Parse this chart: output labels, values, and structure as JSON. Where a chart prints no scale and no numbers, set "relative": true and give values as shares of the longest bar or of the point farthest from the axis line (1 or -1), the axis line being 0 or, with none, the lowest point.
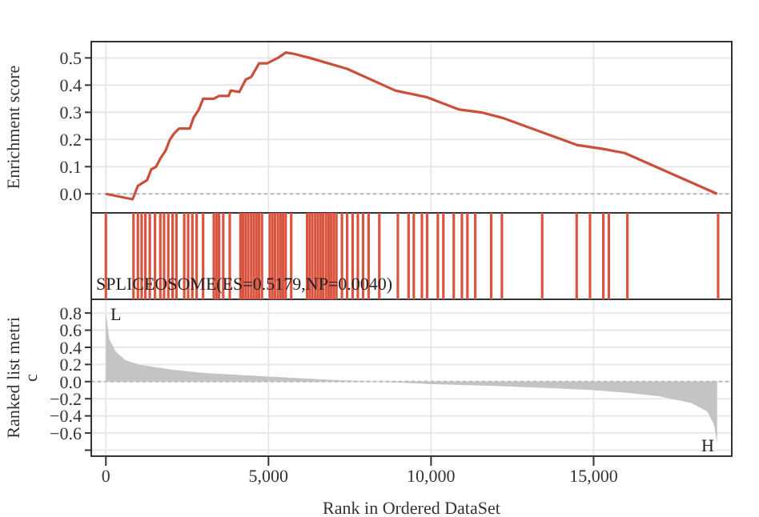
{
  "chart_data": [
    {
      "type": "line",
      "ylabel": "Enrichment score",
      "x": [
        0,
        820,
        985,
        1265,
        1395,
        1545,
        1675,
        1840,
        1970,
        2085,
        2250,
        2580,
        2695,
        2860,
        2990,
        3315,
        3480,
        3775,
        3840,
        4105,
        4300,
        4470,
        4710,
        4960,
        5290,
        5535,
        5780,
        6270,
        7420,
        8900,
        9890,
        10870,
        11530,
        12180,
        13330,
        14480,
        15300,
        15960,
        18800
      ],
      "series": [
        {
          "color": "#c9503c",
          "values": [
            0,
            -0.02,
            0.03,
            0.05,
            0.09,
            0.1,
            0.13,
            0.16,
            0.2,
            0.22,
            0.24,
            0.24,
            0.28,
            0.31,
            0.35,
            0.35,
            0.36,
            0.36,
            0.38,
            0.375,
            0.42,
            0.43,
            0.48,
            0.48,
            0.5,
            0.52,
            0.515,
            0.5,
            0.46,
            0.38,
            0.355,
            0.31,
            0.3,
            0.28,
            0.23,
            0.18,
            0.165,
            0.15,
            0
          ]
        }
      ],
      "xlim": [
        -450,
        19250
      ],
      "xticks": [
        0,
        5000,
        10000,
        15000
      ],
      "ylim": [
        -0.07,
        0.56
      ],
      "yticks": [
        {
          "value": 0,
          "label": "0.0"
        },
        {
          "value": 0.1,
          "label": "0.1"
        },
        {
          "value": 0.2,
          "label": "0.2"
        },
        {
          "value": 0.3,
          "label": "0.3"
        },
        {
          "value": 0.4,
          "label": "0.4"
        },
        {
          "value": 0.5,
          "label": "0.5"
        }
      ],
      "ref_lines": [
        {
          "axis": "y",
          "value": 0,
          "line_style": "dotted",
          "color": "#bbbbbb"
        }
      ],
      "grid": true,
      "tick_labels": "y",
      "marker": "none",
      "line_style": "solid"
    },
    {
      "type": "bar",
      "relative": true,
      "x": [
        0,
        850,
        985,
        1100,
        1215,
        1350,
        1510,
        1675,
        1790,
        1920,
        2050,
        2170,
        2410,
        2530,
        2660,
        2790,
        2990,
        3320,
        3400,
        3480,
        3610,
        3810,
        4140,
        4220,
        4300,
        4380,
        4470,
        4550,
        4630,
        4710,
        4800,
        5040,
        5120,
        5200,
        5290,
        5370,
        5450,
        5530,
        5700,
        6190,
        6270,
        6350,
        6440,
        6520,
        6600,
        6680,
        6770,
        6850,
        6930,
        7010,
        7090,
        7260,
        7420,
        7590,
        7750,
        7910,
        8080,
        8410,
        8980,
        9310,
        9470,
        9720,
        9880,
        10210,
        10380,
        10700,
        10950,
        11120,
        11360,
        11850,
        12180,
        13420,
        14480,
        14890,
        15300,
        15470,
        16040,
        18830
      ],
      "values": [
        1,
        1,
        1,
        1,
        1,
        1,
        1,
        1,
        1,
        1,
        1,
        1,
        1,
        1,
        1,
        1,
        1,
        1,
        1,
        1,
        1,
        1,
        1,
        1,
        1,
        1,
        1,
        1,
        1,
        1,
        1,
        1,
        1,
        1,
        1,
        1,
        1,
        1,
        1,
        1,
        1,
        1,
        1,
        1,
        1,
        1,
        1,
        1,
        1,
        1,
        1,
        1,
        1,
        1,
        1,
        1,
        1,
        1,
        1,
        1,
        1,
        1,
        1,
        1,
        1,
        1,
        1,
        1,
        1,
        1,
        1,
        1,
        1,
        1,
        1,
        1,
        1,
        1
      ],
      "color": "#d9553f",
      "xlim": [
        -450,
        19250
      ],
      "tick_labels": false,
      "annotations": [
        "SPLICEOSOME(ES=0.5179,NP=0.0040)"
      ]
    },
    {
      "type": "area",
      "xlabel": "Rank in Ordered DataSet",
      "ylabel": "Ranked list metric",
      "x": [
        0,
        100,
        300,
        600,
        1000,
        2000,
        3000,
        5000,
        7000,
        9000,
        10000,
        12000,
        14000,
        15000,
        16000,
        17000,
        18000,
        18500,
        18700,
        18800
      ],
      "series": [
        {
          "color": "#c4c4c4",
          "values": [
            0.8,
            0.5,
            0.35,
            0.25,
            0.2,
            0.14,
            0.1,
            0.06,
            0.02,
            -0.01,
            -0.03,
            -0.05,
            -0.08,
            -0.1,
            -0.13,
            -0.17,
            -0.25,
            -0.35,
            -0.5,
            -0.72
          ]
        }
      ],
      "xlim": [
        -450,
        19250
      ],
      "xticks": [
        0,
        {
          "value": 5000,
          "label": "5,000"
        },
        {
          "value": 10000,
          "label": "10,000"
        },
        {
          "value": 15000,
          "label": "15,000"
        }
      ],
      "ylim": [
        -0.87,
        0.96
      ],
      "yticks": [
        {
          "value": -0.8,
          "label": null
        },
        {
          "value": -0.6,
          "label": "−0.6"
        },
        {
          "value": -0.4,
          "label": "−0.4"
        },
        {
          "value": -0.2,
          "label": "−0.2"
        },
        {
          "value": 0,
          "label": "0.0"
        },
        {
          "value": 0.2,
          "label": "0.2"
        },
        {
          "value": 0.4,
          "label": "0.4"
        },
        {
          "value": 0.6,
          "label": "0.6"
        },
        {
          "value": 0.8,
          "label": "0.8"
        }
      ],
      "ref_lines": [
        {
          "axis": "y",
          "value": 0,
          "line_style": "dotted",
          "color": "#bbbbbb"
        }
      ],
      "annotations": [
        "L",
        "H"
      ],
      "grid": true
    }
  ]
}
